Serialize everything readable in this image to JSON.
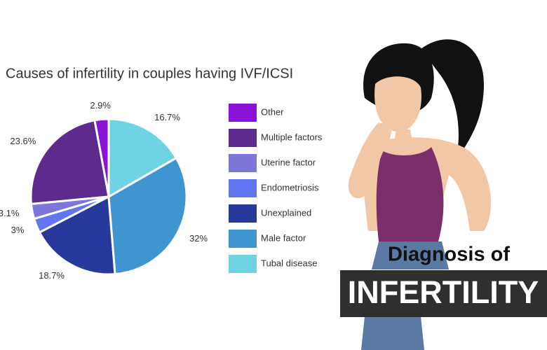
{
  "chart_data": {
    "type": "pie",
    "title": "Causes of infertility in couples having IVF/ICSI",
    "categories": [
      "Other",
      "Multiple factors",
      "Uterine factor",
      "Endometriosis",
      "Unexplained",
      "Male factor",
      "Tubal disease"
    ],
    "values": [
      2.9,
      23.6,
      3.1,
      3,
      18.7,
      32,
      16.7
    ],
    "value_labels": [
      "2.9%",
      "23.6%",
      "3.1%",
      "3%",
      "18.7%",
      "32%",
      "16.7%"
    ],
    "colors": [
      "#8a12d6",
      "#5c2b8c",
      "#7c76d9",
      "#6176f0",
      "#27399a",
      "#3f95cf",
      "#6fd3e3"
    ]
  },
  "banner": {
    "line1": "Diagnosis of",
    "line2": "INFERTILITY"
  }
}
